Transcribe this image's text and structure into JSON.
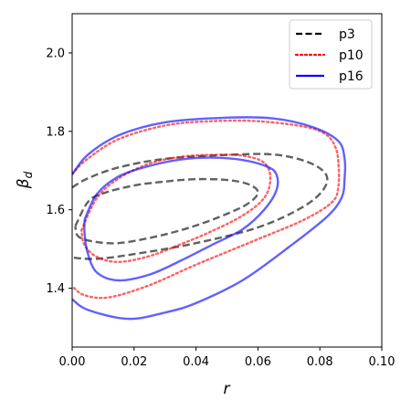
{
  "chart_data": {
    "type": "contour",
    "xlabel": "r",
    "ylabel_symbol": "β",
    "ylabel_sub": "d",
    "xlim": [
      0.0,
      0.1
    ],
    "ylim": [
      1.25,
      2.1
    ],
    "xticks": [
      "0.00",
      "0.02",
      "0.04",
      "0.06",
      "0.08",
      "0.10"
    ],
    "xtick_values": [
      0.0,
      0.02,
      0.04,
      0.06,
      0.08,
      0.1
    ],
    "yticks": [
      "1.4",
      "1.6",
      "1.8",
      "2.0"
    ],
    "ytick_values": [
      1.4,
      1.6,
      1.8,
      2.0
    ],
    "grid": false,
    "legend_position": "top-right",
    "series": [
      {
        "name": "p3",
        "color": "#000000",
        "style": "dashed",
        "contours": [
          [
            [
              0.001,
              1.558
            ],
            [
              0.005,
              1.619
            ],
            [
              0.01,
              1.642
            ],
            [
              0.02,
              1.662
            ],
            [
              0.03,
              1.672
            ],
            [
              0.04,
              1.678
            ],
            [
              0.05,
              1.676
            ],
            [
              0.057,
              1.665
            ],
            [
              0.06,
              1.643
            ],
            [
              0.056,
              1.612
            ],
            [
              0.046,
              1.577
            ],
            [
              0.036,
              1.55
            ],
            [
              0.026,
              1.53
            ],
            [
              0.015,
              1.515
            ],
            [
              0.007,
              1.519
            ],
            [
              0.002,
              1.532
            ],
            [
              0.001,
              1.558
            ]
          ],
          [
            [
              0.0,
              1.657
            ],
            [
              0.005,
              1.68
            ],
            [
              0.015,
              1.708
            ],
            [
              0.03,
              1.73
            ],
            [
              0.05,
              1.74
            ],
            [
              0.065,
              1.741
            ],
            [
              0.076,
              1.722
            ],
            [
              0.082,
              1.69
            ],
            [
              0.081,
              1.65
            ],
            [
              0.074,
              1.605
            ],
            [
              0.06,
              1.555
            ],
            [
              0.04,
              1.515
            ],
            [
              0.02,
              1.487
            ],
            [
              0.008,
              1.475
            ],
            [
              0.0,
              1.478
            ]
          ]
        ]
      },
      {
        "name": "p10",
        "color": "#ff0000",
        "style": "dotted",
        "contours": [
          [
            [
              0.003,
              1.548
            ],
            [
              0.008,
              1.63
            ],
            [
              0.015,
              1.68
            ],
            [
              0.025,
              1.718
            ],
            [
              0.035,
              1.735
            ],
            [
              0.045,
              1.74
            ],
            [
              0.055,
              1.738
            ],
            [
              0.062,
              1.72
            ],
            [
              0.064,
              1.68
            ],
            [
              0.062,
              1.63
            ],
            [
              0.055,
              1.585
            ],
            [
              0.045,
              1.545
            ],
            [
              0.035,
              1.512
            ],
            [
              0.025,
              1.482
            ],
            [
              0.015,
              1.467
            ],
            [
              0.008,
              1.48
            ],
            [
              0.004,
              1.51
            ],
            [
              0.003,
              1.548
            ]
          ],
          [
            [
              0.0,
              1.692
            ],
            [
              0.005,
              1.73
            ],
            [
              0.015,
              1.78
            ],
            [
              0.03,
              1.815
            ],
            [
              0.045,
              1.826
            ],
            [
              0.06,
              1.826
            ],
            [
              0.075,
              1.812
            ],
            [
              0.082,
              1.792
            ],
            [
              0.085,
              1.76
            ],
            [
              0.086,
              1.72
            ],
            [
              0.086,
              1.66
            ],
            [
              0.084,
              1.62
            ],
            [
              0.075,
              1.575
            ],
            [
              0.06,
              1.525
            ],
            [
              0.04,
              1.46
            ],
            [
              0.025,
              1.408
            ],
            [
              0.012,
              1.377
            ],
            [
              0.004,
              1.382
            ],
            [
              0.0,
              1.405
            ]
          ]
        ]
      },
      {
        "name": "p16",
        "color": "#0000ff",
        "style": "solid",
        "contours": [
          [
            [
              0.004,
              1.575
            ],
            [
              0.008,
              1.64
            ],
            [
              0.015,
              1.685
            ],
            [
              0.025,
              1.712
            ],
            [
              0.035,
              1.728
            ],
            [
              0.045,
              1.733
            ],
            [
              0.055,
              1.727
            ],
            [
              0.063,
              1.71
            ],
            [
              0.066,
              1.69
            ],
            [
              0.066,
              1.65
            ],
            [
              0.062,
              1.6
            ],
            [
              0.055,
              1.55
            ],
            [
              0.045,
              1.51
            ],
            [
              0.035,
              1.47
            ],
            [
              0.025,
              1.435
            ],
            [
              0.015,
              1.42
            ],
            [
              0.008,
              1.44
            ],
            [
              0.005,
              1.49
            ],
            [
              0.004,
              1.54
            ],
            [
              0.004,
              1.575
            ]
          ],
          [
            [
              0.0,
              1.69
            ],
            [
              0.005,
              1.74
            ],
            [
              0.015,
              1.79
            ],
            [
              0.03,
              1.823
            ],
            [
              0.05,
              1.835
            ],
            [
              0.065,
              1.833
            ],
            [
              0.078,
              1.81
            ],
            [
              0.086,
              1.775
            ],
            [
              0.088,
              1.73
            ],
            [
              0.088,
              1.68
            ],
            [
              0.087,
              1.63
            ],
            [
              0.082,
              1.58
            ],
            [
              0.07,
              1.505
            ],
            [
              0.055,
              1.42
            ],
            [
              0.04,
              1.362
            ],
            [
              0.03,
              1.338
            ],
            [
              0.018,
              1.322
            ],
            [
              0.005,
              1.345
            ],
            [
              0.0,
              1.372
            ]
          ]
        ]
      }
    ]
  }
}
